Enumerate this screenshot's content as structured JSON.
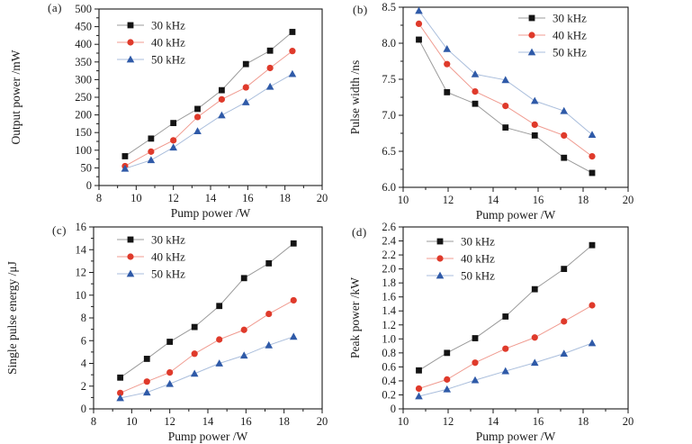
{
  "figure": {
    "background": "#ffffff",
    "xlabel_shared": "Pump power /W",
    "legend_labels": [
      "30 kHz",
      "40 kHz",
      "50 kHz"
    ]
  },
  "series_styles": [
    {
      "name": "30 kHz",
      "marker": "square",
      "marker_color": "#141414",
      "line_color": "#9b9b9b"
    },
    {
      "name": "40 kHz",
      "marker": "circle",
      "marker_color": "#df3a2b",
      "line_color": "#f09b90"
    },
    {
      "name": "50 kHz",
      "marker": "triangle",
      "marker_color": "#2f5aa8",
      "line_color": "#aabedc"
    }
  ],
  "chart_data": [
    {
      "type": "line",
      "panel_label": "(a)",
      "xlabel": "Pump power /W",
      "ylabel": "Output power /mW",
      "xlim": [
        8,
        20
      ],
      "x_major": 2,
      "x_minor": 1,
      "x_decimals": 0,
      "ylim": [
        0,
        500
      ],
      "y_major": 50,
      "y_minor": 25,
      "y_decimals": 0,
      "grid": false,
      "legend_position": "top-left",
      "x": [
        9.4,
        10.8,
        12.0,
        13.3,
        14.6,
        15.9,
        17.2,
        18.4
      ],
      "series": [
        {
          "name": "30 kHz",
          "values": [
            83,
            133,
            177,
            217,
            270,
            344,
            382,
            435
          ]
        },
        {
          "name": "40 kHz",
          "values": [
            55,
            96,
            128,
            194,
            244,
            278,
            333,
            381
          ]
        },
        {
          "name": "50 kHz",
          "values": [
            48,
            72,
            108,
            154,
            199,
            236,
            280,
            316
          ]
        }
      ]
    },
    {
      "type": "line",
      "panel_label": "(b)",
      "xlabel": "Pump power /W",
      "ylabel": "Pulse width /ns",
      "xlim": [
        10,
        20
      ],
      "x_major": 2,
      "x_minor": 1,
      "x_decimals": 0,
      "ylim": [
        6.0,
        8.5
      ],
      "y_major": 0.5,
      "y_minor": 0.25,
      "y_decimals": 1,
      "grid": false,
      "legend_position": "top-right",
      "x": [
        10.7,
        11.95,
        13.2,
        14.55,
        15.85,
        17.15,
        18.4
      ],
      "series": [
        {
          "name": "30 kHz",
          "values": [
            8.05,
            7.32,
            7.16,
            6.83,
            6.72,
            6.41,
            6.2
          ]
        },
        {
          "name": "40 kHz",
          "values": [
            8.27,
            7.71,
            7.33,
            7.13,
            6.87,
            6.72,
            6.43
          ]
        },
        {
          "name": "50 kHz",
          "values": [
            8.45,
            7.92,
            7.57,
            7.49,
            7.2,
            7.06,
            6.73
          ]
        }
      ]
    },
    {
      "type": "line",
      "panel_label": "(c)",
      "xlabel": "Pump power /W",
      "ylabel": "Single pulse energy /μJ",
      "xlim": [
        8,
        20
      ],
      "x_major": 2,
      "x_minor": 1,
      "x_decimals": 0,
      "ylim": [
        0,
        16
      ],
      "y_major": 2,
      "y_minor": 1,
      "y_decimals": 0,
      "grid": false,
      "legend_position": "top-left",
      "x": [
        9.4,
        10.8,
        12.0,
        13.3,
        14.6,
        15.9,
        17.2,
        18.5
      ],
      "series": [
        {
          "name": "30 kHz",
          "values": [
            2.75,
            4.4,
            5.9,
            7.2,
            9.05,
            11.5,
            12.8,
            14.55
          ]
        },
        {
          "name": "40 kHz",
          "values": [
            1.4,
            2.4,
            3.2,
            4.85,
            6.1,
            6.95,
            8.35,
            9.55
          ]
        },
        {
          "name": "50 kHz",
          "values": [
            0.95,
            1.45,
            2.2,
            3.1,
            4.0,
            4.7,
            5.6,
            6.35
          ]
        }
      ]
    },
    {
      "type": "line",
      "panel_label": "(d)",
      "xlabel": "Pump power /W",
      "ylabel": "Peak power /kW",
      "xlim": [
        10,
        20
      ],
      "x_major": 2,
      "x_minor": 1,
      "x_decimals": 0,
      "ylim": [
        0,
        2.6
      ],
      "y_major": 0.2,
      "y_minor": null,
      "y_decimals": 1,
      "grid": false,
      "legend_position": "top-left",
      "x": [
        10.7,
        11.95,
        13.2,
        14.55,
        15.85,
        17.15,
        18.4
      ],
      "series": [
        {
          "name": "30 kHz",
          "values": [
            0.55,
            0.8,
            1.01,
            1.32,
            1.71,
            2.0,
            2.34
          ]
        },
        {
          "name": "40 kHz",
          "values": [
            0.29,
            0.42,
            0.66,
            0.86,
            1.02,
            1.25,
            1.48
          ]
        },
        {
          "name": "50 kHz",
          "values": [
            0.18,
            0.28,
            0.41,
            0.54,
            0.66,
            0.79,
            0.94
          ]
        }
      ]
    }
  ]
}
